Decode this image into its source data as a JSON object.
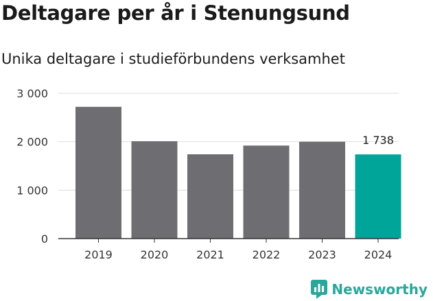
{
  "header": {
    "title": "Deltagare per år i Stenungsund",
    "subtitle": "Unika deltagare i studieförbundens verksamhet"
  },
  "chart_data": {
    "type": "bar",
    "categories": [
      "2019",
      "2020",
      "2021",
      "2022",
      "2023",
      "2024"
    ],
    "values": [
      2720,
      2010,
      1740,
      1920,
      2000,
      1738
    ],
    "ylim": [
      0,
      3000
    ],
    "yticks": [
      0,
      1000,
      2000,
      3000
    ],
    "ytick_labels": [
      "0",
      "1 000",
      "2 000",
      "3 000"
    ],
    "grid": true,
    "highlight": {
      "index": 5,
      "label": "1 738"
    },
    "colors": {
      "bar": "#6e6d72",
      "highlight": "#00a59a",
      "grid": "#dddddd",
      "axis": "#333333"
    }
  },
  "brand": {
    "name": "Newsworthy",
    "icon": "newsworthy-logo-icon",
    "color": "#2aa79b"
  }
}
